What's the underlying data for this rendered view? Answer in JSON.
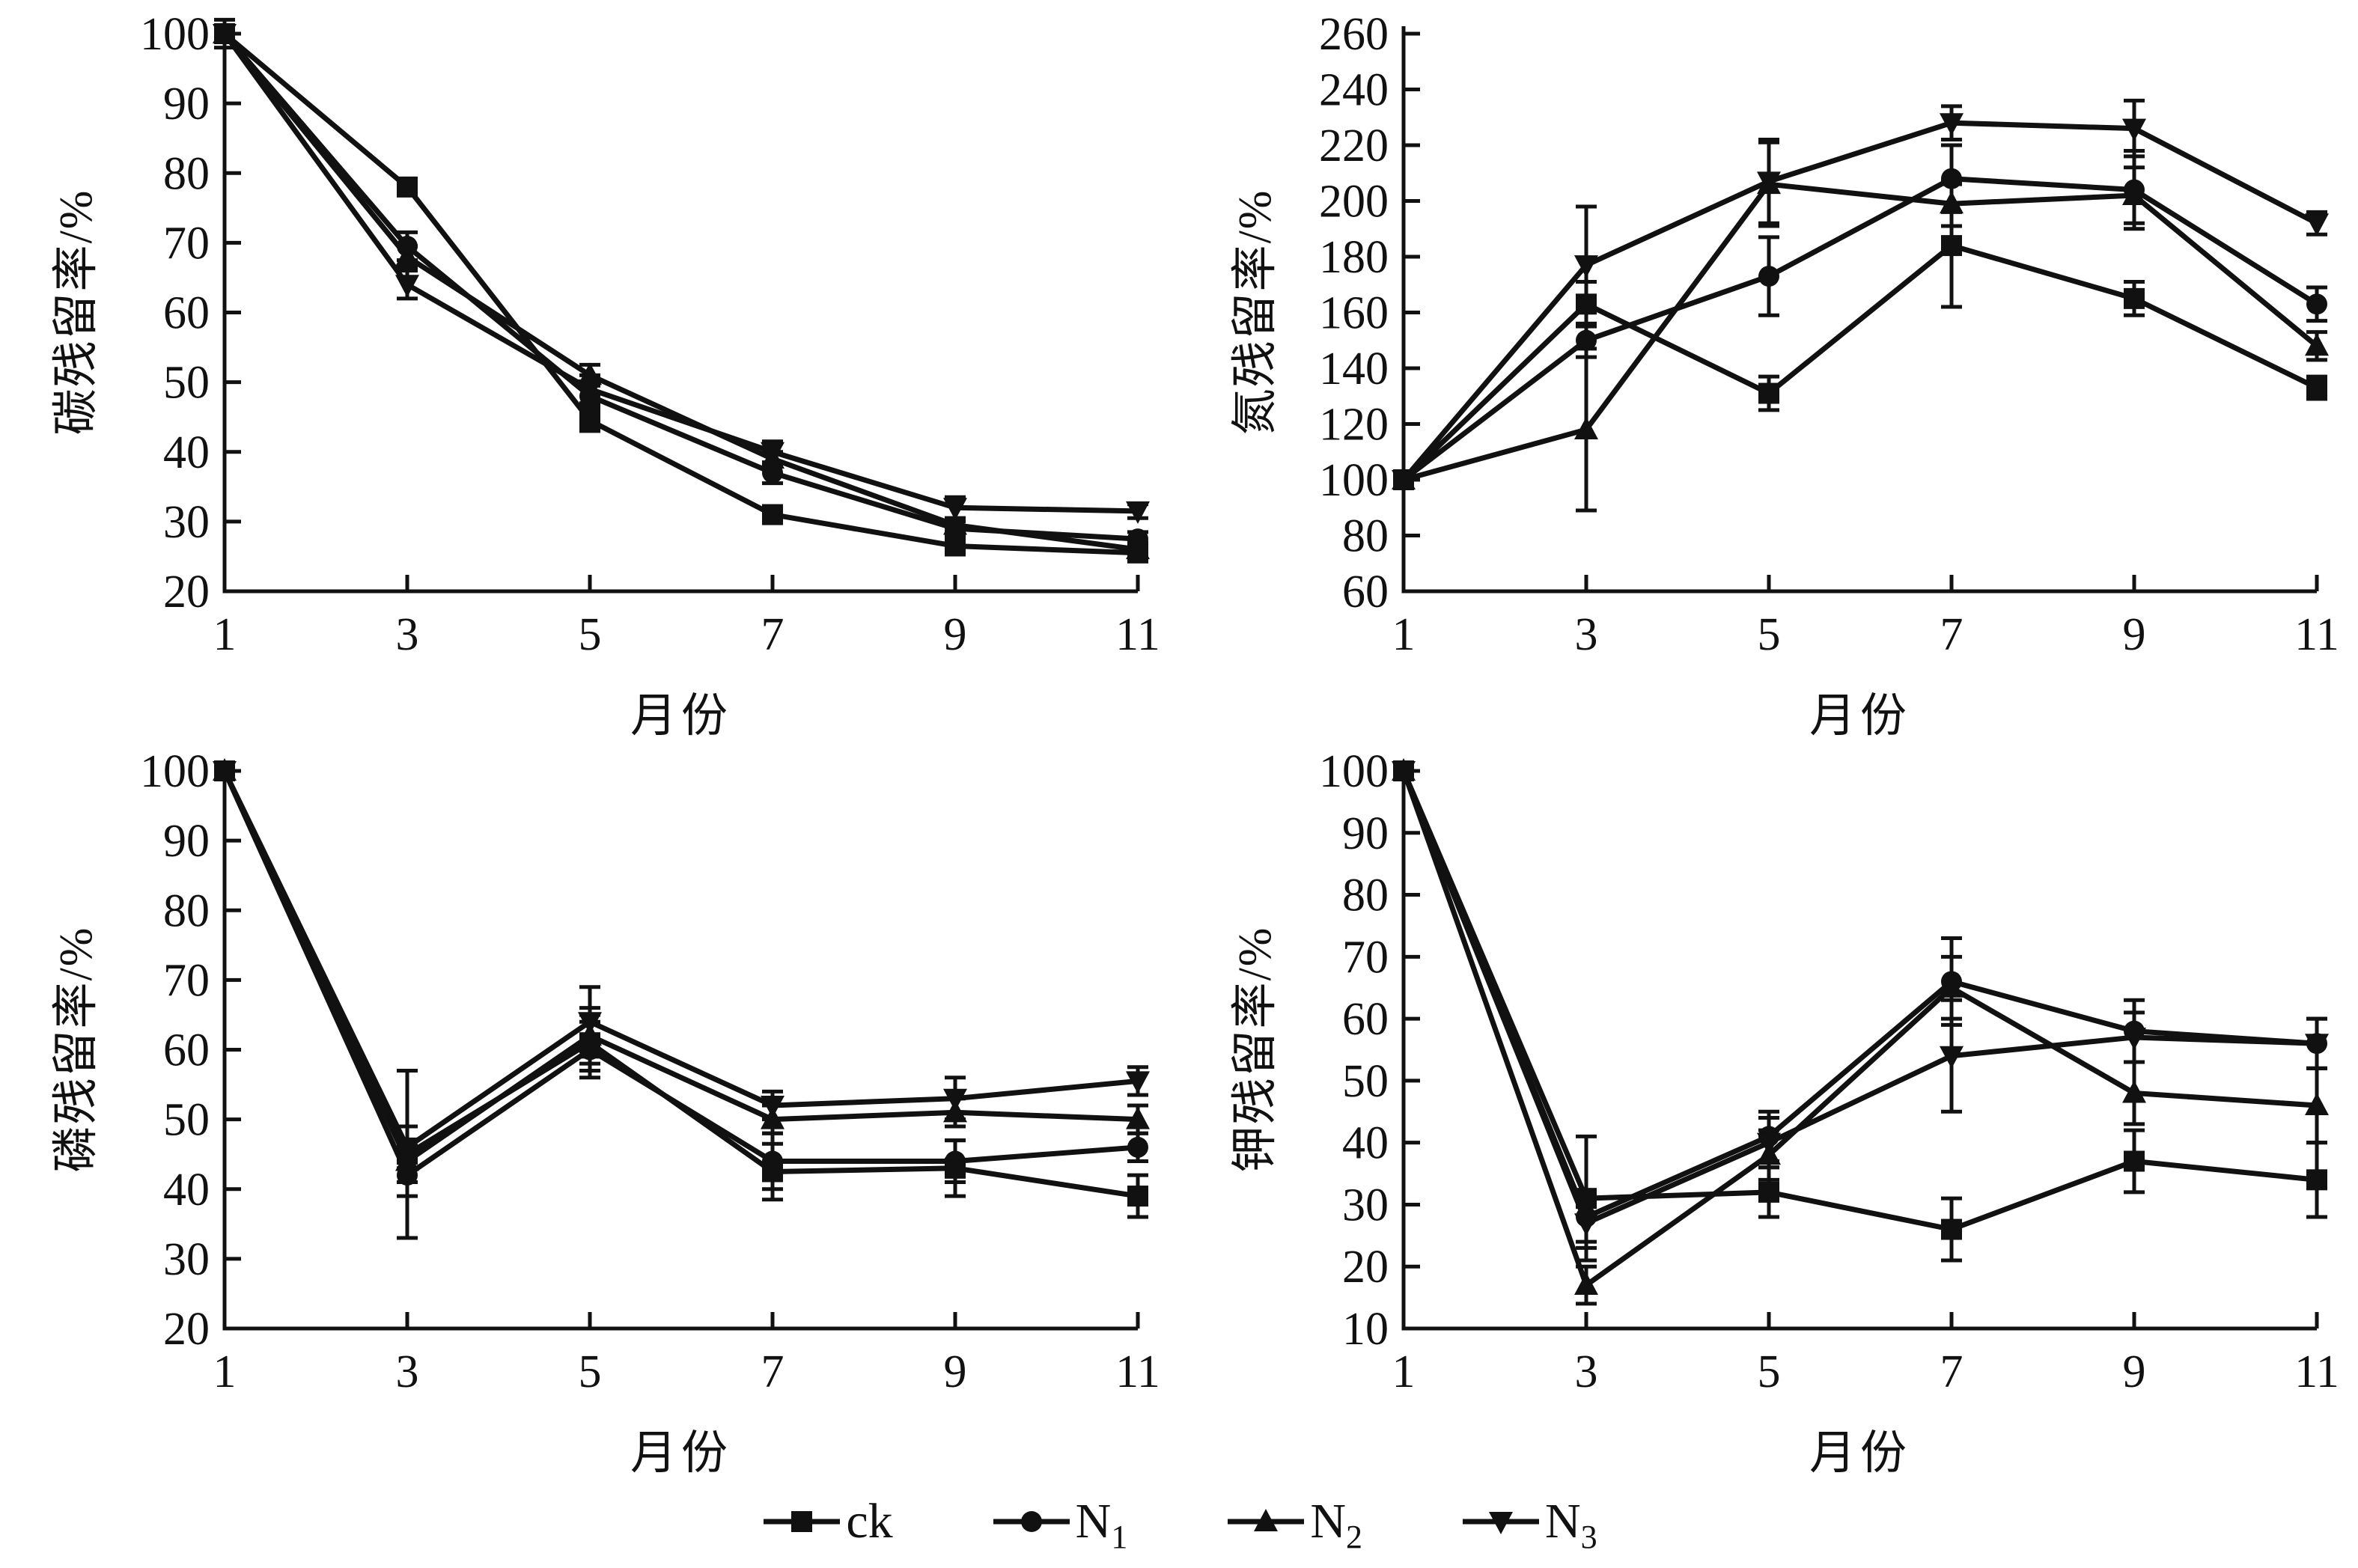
{
  "figure": {
    "background": "#ffffff",
    "ink": "#111111"
  },
  "legend": {
    "items": [
      {
        "text": "ck",
        "sub": "",
        "marker": "square"
      },
      {
        "text": "N",
        "sub": "1",
        "marker": "circle"
      },
      {
        "text": "N",
        "sub": "2",
        "marker": "triangle-up"
      },
      {
        "text": "N",
        "sub": "3",
        "marker": "triangle-down"
      }
    ]
  },
  "chart_data": [
    {
      "id": "carbon",
      "type": "line",
      "title": "",
      "xlabel": "月份",
      "ylabel": "碳残留率/%",
      "x": [
        1,
        3,
        5,
        7,
        9,
        11
      ],
      "xticks": [
        1,
        3,
        5,
        7,
        9,
        11
      ],
      "xlim": [
        1,
        11
      ],
      "ylim": [
        20,
        100
      ],
      "ytick_step": 10,
      "grid": false,
      "legend_position": "shared-bottom",
      "series": [
        {
          "name": "ck",
          "marker": "square",
          "values": [
            100,
            78,
            44.5,
            31,
            26.5,
            25.5
          ],
          "errors": [
            2,
            1,
            1.5,
            1,
            1,
            1
          ]
        },
        {
          "name": "N1",
          "marker": "circle",
          "values": [
            100,
            69.5,
            48,
            37,
            29,
            27.5
          ],
          "errors": [
            0,
            2,
            1.5,
            1.5,
            1,
            1
          ]
        },
        {
          "name": "N2",
          "marker": "triangle-up",
          "values": [
            100,
            68,
            51,
            39,
            29.5,
            26
          ],
          "errors": [
            0,
            1.5,
            1.5,
            1,
            1,
            1
          ]
        },
        {
          "name": "N3",
          "marker": "triangle-down",
          "values": [
            100,
            64,
            49,
            40,
            32,
            31.5
          ],
          "errors": [
            0,
            2,
            2,
            1.5,
            1.5,
            1
          ]
        }
      ]
    },
    {
      "id": "nitrogen",
      "type": "line",
      "title": "",
      "xlabel": "月份",
      "ylabel": "氮残留率/%",
      "x": [
        1,
        3,
        5,
        7,
        9,
        11
      ],
      "xticks": [
        1,
        3,
        5,
        7,
        9,
        11
      ],
      "xlim": [
        1,
        11
      ],
      "ylim": [
        60,
        260
      ],
      "ytick_step": 20,
      "grid": false,
      "legend_position": "shared-bottom",
      "series": [
        {
          "name": "ck",
          "marker": "square",
          "values": [
            100,
            163,
            131,
            184,
            165,
            133
          ],
          "errors": [
            0,
            8,
            6,
            22,
            6,
            4
          ]
        },
        {
          "name": "N1",
          "marker": "circle",
          "values": [
            100,
            150,
            173,
            208,
            204,
            163
          ],
          "errors": [
            0,
            6,
            14,
            12,
            14,
            6
          ]
        },
        {
          "name": "N2",
          "marker": "triangle-up",
          "values": [
            100,
            118,
            206,
            199,
            202,
            148
          ],
          "errors": [
            0,
            29,
            15,
            8,
            10,
            5
          ]
        },
        {
          "name": "N3",
          "marker": "triangle-down",
          "values": [
            100,
            177,
            207,
            228,
            226,
            192
          ],
          "errors": [
            0,
            21,
            15,
            6,
            10,
            4
          ]
        }
      ]
    },
    {
      "id": "phosphorus",
      "type": "line",
      "title": "",
      "xlabel": "月份",
      "ylabel": "磷残留率/%",
      "x": [
        1,
        3,
        5,
        7,
        9,
        11
      ],
      "xticks": [
        1,
        3,
        5,
        7,
        9,
        11
      ],
      "xlim": [
        1,
        11
      ],
      "ylim": [
        20,
        100
      ],
      "ytick_step": 10,
      "grid": false,
      "legend_position": "shared-bottom",
      "series": [
        {
          "name": "ck",
          "marker": "square",
          "values": [
            100,
            45,
            61,
            42.5,
            43,
            39
          ],
          "errors": [
            0,
            12,
            4,
            4,
            4,
            3
          ]
        },
        {
          "name": "N1",
          "marker": "circle",
          "values": [
            100,
            42,
            60,
            44,
            44,
            46
          ],
          "errors": [
            0,
            3,
            4,
            4,
            3,
            2
          ]
        },
        {
          "name": "N2",
          "marker": "triangle-up",
          "values": [
            100,
            44,
            62,
            50,
            51,
            50
          ],
          "errors": [
            0,
            3,
            4,
            2,
            2,
            2
          ]
        },
        {
          "name": "N3",
          "marker": "triangle-down",
          "values": [
            100,
            46,
            64,
            52,
            53,
            55.5
          ],
          "errors": [
            0,
            3,
            5,
            2,
            3,
            2
          ]
        }
      ]
    },
    {
      "id": "potassium",
      "type": "line",
      "title": "",
      "xlabel": "月份",
      "ylabel": "钾残留率/%",
      "x": [
        1,
        3,
        5,
        7,
        9,
        11
      ],
      "xticks": [
        1,
        3,
        5,
        7,
        9,
        11
      ],
      "xlim": [
        1,
        11
      ],
      "ylim": [
        10,
        100
      ],
      "ytick_step": 10,
      "grid": false,
      "legend_position": "shared-bottom",
      "series": [
        {
          "name": "ck",
          "marker": "square",
          "values": [
            100,
            31,
            32,
            26,
            37,
            34
          ],
          "errors": [
            0,
            10,
            4,
            5,
            5,
            6
          ]
        },
        {
          "name": "N1",
          "marker": "circle",
          "values": [
            100,
            28,
            41,
            66,
            58,
            56
          ],
          "errors": [
            0,
            4,
            4,
            7,
            5,
            4
          ]
        },
        {
          "name": "N2",
          "marker": "triangle-up",
          "values": [
            100,
            17,
            38,
            65,
            48,
            46
          ],
          "errors": [
            0,
            3,
            4,
            5,
            5,
            6
          ]
        },
        {
          "name": "N3",
          "marker": "triangle-down",
          "values": [
            100,
            27,
            40,
            54,
            57,
            56
          ],
          "errors": [
            0,
            4,
            4,
            9,
            4,
            4
          ]
        }
      ]
    }
  ]
}
